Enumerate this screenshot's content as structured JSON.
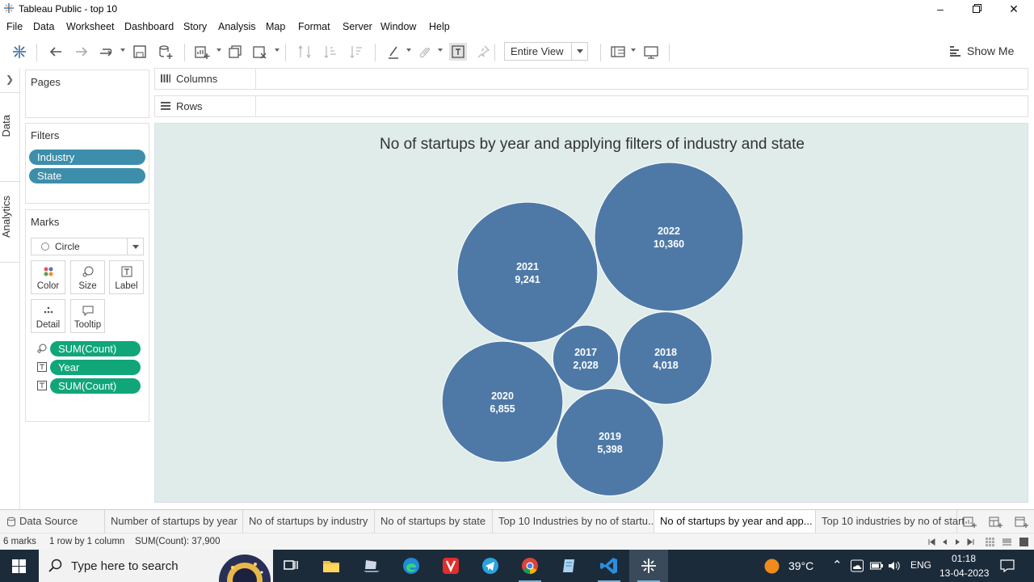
{
  "window": {
    "title": "Tableau Public - top 10",
    "controls": [
      "minimize-icon",
      "restore-icon",
      "close-icon"
    ]
  },
  "menu": [
    "File",
    "Data",
    "Worksheet",
    "Dashboard",
    "Story",
    "Analysis",
    "Map",
    "Format",
    "Server",
    "Window",
    "Help"
  ],
  "toolbar": {
    "fit_label": "Entire View",
    "show_me_label": "Show Me",
    "icons": [
      "tableau-logo-icon",
      "undo-icon",
      "redo-icon",
      "replay-icon",
      "save-icon",
      "add-data-icon",
      "new-sheet-icon",
      "duplicate-icon",
      "clear-icon",
      "swap-icon",
      "sort-asc-icon",
      "sort-desc-icon",
      "highlight-icon",
      "attach-icon",
      "text-label-icon",
      "pin-icon",
      "layout-icon",
      "presentation-icon"
    ]
  },
  "side_rail": {
    "data_tab": "Data",
    "analytics_tab": "Analytics"
  },
  "pages": {
    "title": "Pages"
  },
  "filters": {
    "title": "Filters",
    "items": [
      "Industry",
      "State"
    ]
  },
  "marks": {
    "title": "Marks",
    "type": "Circle",
    "buttons": [
      "Color",
      "Size",
      "Label",
      "Detail",
      "Tooltip"
    ],
    "encodings": [
      {
        "icon": "size-encoding-icon",
        "field": "SUM(Count)"
      },
      {
        "icon": "text-encoding-icon",
        "field": "Year"
      },
      {
        "icon": "text-encoding-icon",
        "field": "SUM(Count)"
      }
    ]
  },
  "shelves": {
    "columns": "Columns",
    "rows": "Rows"
  },
  "chart_data": {
    "type": "bubble",
    "title": "No of startups by year and applying filters of industry and state",
    "color": "#4e79a7",
    "points": [
      {
        "label": "2022",
        "value": 10360,
        "value_label": "10,360"
      },
      {
        "label": "2021",
        "value": 9241,
        "value_label": "9,241"
      },
      {
        "label": "2020",
        "value": 6855,
        "value_label": "6,855"
      },
      {
        "label": "2019",
        "value": 5398,
        "value_label": "5,398"
      },
      {
        "label": "2018",
        "value": 4018,
        "value_label": "4,018"
      },
      {
        "label": "2017",
        "value": 2028,
        "value_label": "2,028"
      }
    ]
  },
  "sheet_tabs": {
    "data_source": "Data Source",
    "tabs": [
      "Number of startups by year",
      "No of startups by industry",
      "No of startups by state",
      "Top 10 Industries by no of startu...",
      "No of startups by year and app...",
      "Top 10 industries by no of start"
    ],
    "active_index": 4
  },
  "status": {
    "marks": "6 marks",
    "grid": "1 row by 1 column",
    "sum": "SUM(Count): 37,900"
  },
  "taskbar": {
    "search_placeholder": "Type here to search",
    "weather": "39°C",
    "lang": "ENG",
    "time": "01:18",
    "date": "13-04-2023"
  }
}
